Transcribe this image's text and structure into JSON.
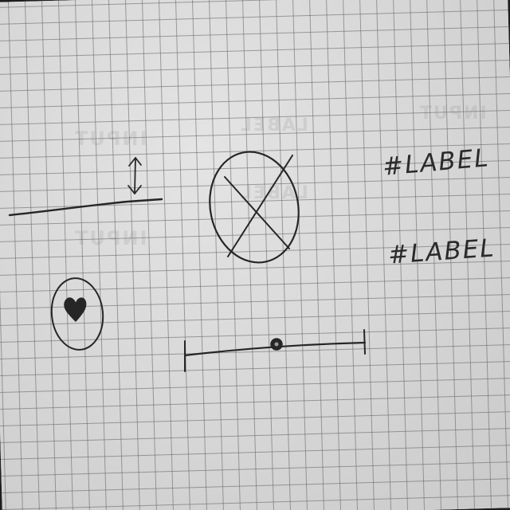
{
  "labels": [
    {
      "text": "#LABEL"
    },
    {
      "text": "#LABEL"
    }
  ],
  "palette": {
    "paper": "#d9d9d9",
    "grid": "#5f5f5f",
    "ink": "#262626"
  },
  "icons": [
    "up-down-arrow-icon",
    "close-icon",
    "heart-icon"
  ],
  "slider": {
    "level": 0.5
  }
}
